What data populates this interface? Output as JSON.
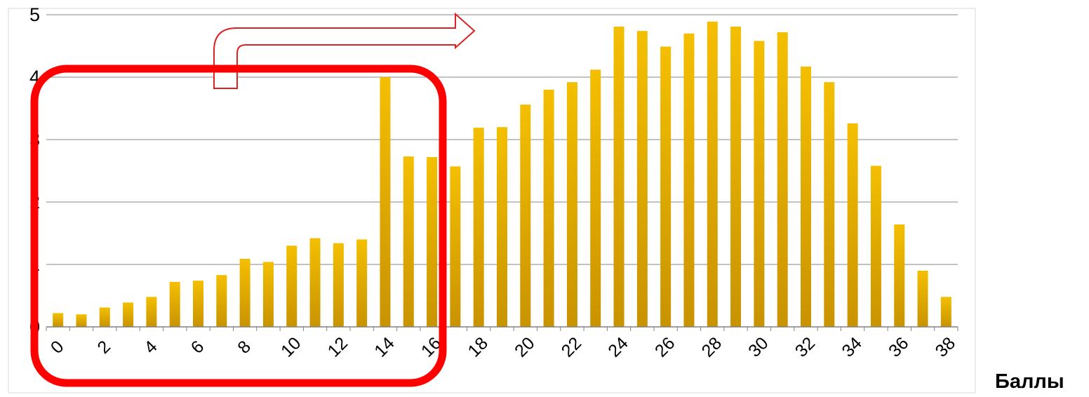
{
  "chart_data": {
    "type": "bar",
    "categories": [
      "0",
      "1",
      "2",
      "3",
      "4",
      "5",
      "6",
      "7",
      "8",
      "9",
      "10",
      "11",
      "12",
      "13",
      "14",
      "15",
      "16",
      "17",
      "18",
      "19",
      "20",
      "21",
      "22",
      "23",
      "24",
      "25",
      "26",
      "27",
      "28",
      "29",
      "30",
      "31",
      "32",
      "33",
      "34",
      "35",
      "36",
      "37",
      "38"
    ],
    "x_tick_labels": [
      "0",
      "2",
      "4",
      "6",
      "8",
      "10",
      "12",
      "14",
      "16",
      "18",
      "20",
      "22",
      "24",
      "26",
      "28",
      "30",
      "32",
      "34",
      "36",
      "38"
    ],
    "values": [
      0.22,
      0.2,
      0.31,
      0.39,
      0.48,
      0.72,
      0.74,
      0.83,
      1.09,
      1.04,
      1.3,
      1.42,
      1.34,
      1.4,
      4.0,
      2.73,
      2.72,
      2.57,
      3.19,
      3.2,
      3.56,
      3.8,
      3.92,
      4.12,
      4.81,
      4.74,
      4.49,
      4.7,
      4.89,
      4.81,
      4.58,
      4.72,
      4.17,
      3.92,
      3.26,
      2.58,
      1.64,
      0.9,
      0.48
    ],
    "ylim": [
      0,
      5
    ],
    "y_ticks": [
      "0",
      "1",
      "2",
      "3",
      "4",
      "5"
    ],
    "xlabel": "Баллы",
    "ylabel": "",
    "title": "",
    "grid": true,
    "bar_color": "#E8B400",
    "annotation": {
      "shape": "rounded-rectangle",
      "color": "#FF0000",
      "highlighted_range": "0-16",
      "arrow": "bent-right-arrow",
      "arrow_color": "#E02020"
    }
  }
}
